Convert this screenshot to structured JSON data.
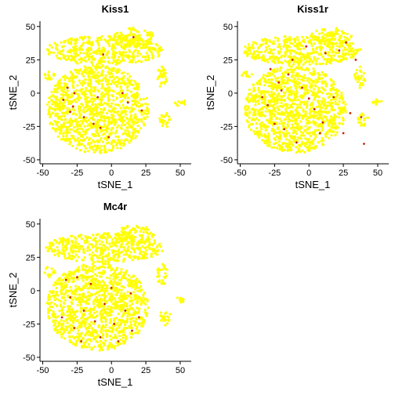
{
  "chart_data": [
    {
      "type": "scatter",
      "title": "Kiss1",
      "xlabel": "tSNE_1",
      "ylabel": "tSNE_2",
      "xlim": [
        -52,
        58
      ],
      "ylim": [
        -53,
        54
      ],
      "x_ticks": [
        -50,
        -25,
        0,
        25,
        50
      ],
      "y_ticks": [
        -50,
        -25,
        0,
        25,
        50
      ],
      "x_tick_labels": [
        "-50",
        "-25",
        "0",
        "25",
        "50"
      ],
      "y_tick_labels": [
        "-50",
        "-25",
        "0",
        "25",
        "50"
      ],
      "grid": false,
      "legend": "none",
      "base_color": "#FFFF00",
      "expressed_color": "#CC2200",
      "clusters": [
        {
          "cx": -10,
          "cy": -12,
          "rx": 37,
          "ry": 33
        },
        {
          "cx": -5,
          "cy": 32,
          "rx": 43,
          "ry": 11
        },
        {
          "cx": 16,
          "cy": 42,
          "rx": 15,
          "ry": 7
        },
        {
          "cx": 37,
          "cy": 12,
          "rx": 4,
          "ry": 8
        },
        {
          "cx": 50,
          "cy": -7,
          "rx": 4,
          "ry": 3
        },
        {
          "cx": 39,
          "cy": -20,
          "rx": 4,
          "ry": 6
        },
        {
          "cx": -45,
          "cy": 14,
          "rx": 4,
          "ry": 4
        }
      ],
      "expressed_points": [
        [
          -32,
          4
        ],
        [
          -27,
          0
        ],
        [
          -10,
          -3
        ],
        [
          -8,
          -26
        ],
        [
          -13,
          -23
        ],
        [
          -20,
          -18
        ],
        [
          -28,
          -10
        ],
        [
          -30,
          -14
        ],
        [
          8,
          0
        ],
        [
          12,
          -7
        ],
        [
          22,
          -13
        ],
        [
          -2,
          -33
        ],
        [
          -35,
          -5
        ],
        [
          16,
          42
        ],
        [
          -6,
          29
        ]
      ]
    },
    {
      "type": "scatter",
      "title": "Kiss1r",
      "xlabel": "tSNE_1",
      "ylabel": "tSNE_2",
      "xlim": [
        -52,
        58
      ],
      "ylim": [
        -53,
        54
      ],
      "x_ticks": [
        -50,
        -25,
        0,
        25,
        50
      ],
      "y_ticks": [
        -50,
        -25,
        0,
        25,
        50
      ],
      "x_tick_labels": [
        "-50",
        "-25",
        "0",
        "25",
        "50"
      ],
      "y_tick_labels": [
        "-50",
        "-25",
        "0",
        "25",
        "50"
      ],
      "grid": false,
      "legend": "none",
      "base_color": "#FFFF00",
      "expressed_color": "#CC2200",
      "clusters": [
        {
          "cx": -10,
          "cy": -12,
          "rx": 37,
          "ry": 33
        },
        {
          "cx": -5,
          "cy": 32,
          "rx": 43,
          "ry": 11
        },
        {
          "cx": 16,
          "cy": 42,
          "rx": 15,
          "ry": 7
        },
        {
          "cx": 37,
          "cy": 12,
          "rx": 4,
          "ry": 8
        },
        {
          "cx": 50,
          "cy": -7,
          "rx": 4,
          "ry": 3
        },
        {
          "cx": 39,
          "cy": -20,
          "rx": 4,
          "ry": 6
        },
        {
          "cx": -45,
          "cy": 14,
          "rx": 4,
          "ry": 4
        }
      ],
      "expressed_points": [
        [
          -28,
          18
        ],
        [
          -22,
          8
        ],
        [
          -15,
          14
        ],
        [
          -12,
          25
        ],
        [
          -5,
          4
        ],
        [
          0,
          -4
        ],
        [
          4,
          -12
        ],
        [
          10,
          -22
        ],
        [
          -25,
          -23
        ],
        [
          -18,
          -27
        ],
        [
          -30,
          -9
        ],
        [
          -34,
          -3
        ],
        [
          18,
          -3
        ],
        [
          22,
          32
        ],
        [
          27,
          38
        ],
        [
          25,
          -30
        ],
        [
          38,
          -18
        ],
        [
          40,
          -38
        ],
        [
          -9,
          -37
        ],
        [
          12,
          30
        ],
        [
          -2,
          35
        ],
        [
          30,
          -15
        ],
        [
          8,
          -30
        ],
        [
          -20,
          2
        ],
        [
          34,
          25
        ]
      ]
    },
    {
      "type": "scatter",
      "title": "Mc4r",
      "xlabel": "tSNE_1",
      "ylabel": "tSNE_2",
      "xlim": [
        -52,
        58
      ],
      "ylim": [
        -53,
        54
      ],
      "x_ticks": [
        -50,
        -25,
        0,
        25,
        50
      ],
      "y_ticks": [
        -50,
        -25,
        0,
        25,
        50
      ],
      "x_tick_labels": [
        "-50",
        "-25",
        "0",
        "25",
        "50"
      ],
      "y_tick_labels": [
        "-50",
        "-25",
        "0",
        "25",
        "50"
      ],
      "grid": false,
      "legend": "none",
      "base_color": "#FFFF00",
      "expressed_color": "#CC2200",
      "clusters": [
        {
          "cx": -10,
          "cy": -12,
          "rx": 37,
          "ry": 33
        },
        {
          "cx": -5,
          "cy": 32,
          "rx": 43,
          "ry": 11
        },
        {
          "cx": 16,
          "cy": 42,
          "rx": 15,
          "ry": 7
        },
        {
          "cx": 37,
          "cy": 12,
          "rx": 4,
          "ry": 8
        },
        {
          "cx": 50,
          "cy": -7,
          "rx": 4,
          "ry": 3
        },
        {
          "cx": 39,
          "cy": -20,
          "rx": 4,
          "ry": 6
        },
        {
          "cx": -45,
          "cy": 14,
          "rx": 4,
          "ry": 4
        }
      ],
      "expressed_points": [
        [
          -30,
          -5
        ],
        [
          -36,
          -20
        ],
        [
          -27,
          -28
        ],
        [
          -20,
          -15
        ],
        [
          -12,
          -23
        ],
        [
          -5,
          -10
        ],
        [
          2,
          -25
        ],
        [
          10,
          -15
        ],
        [
          14,
          -2
        ],
        [
          -15,
          5
        ],
        [
          -25,
          10
        ],
        [
          0,
          2
        ],
        [
          20,
          -20
        ],
        [
          -8,
          -35
        ],
        [
          5,
          -38
        ],
        [
          -33,
          8
        ],
        [
          -22,
          -38
        ],
        [
          15,
          -30
        ]
      ]
    }
  ]
}
